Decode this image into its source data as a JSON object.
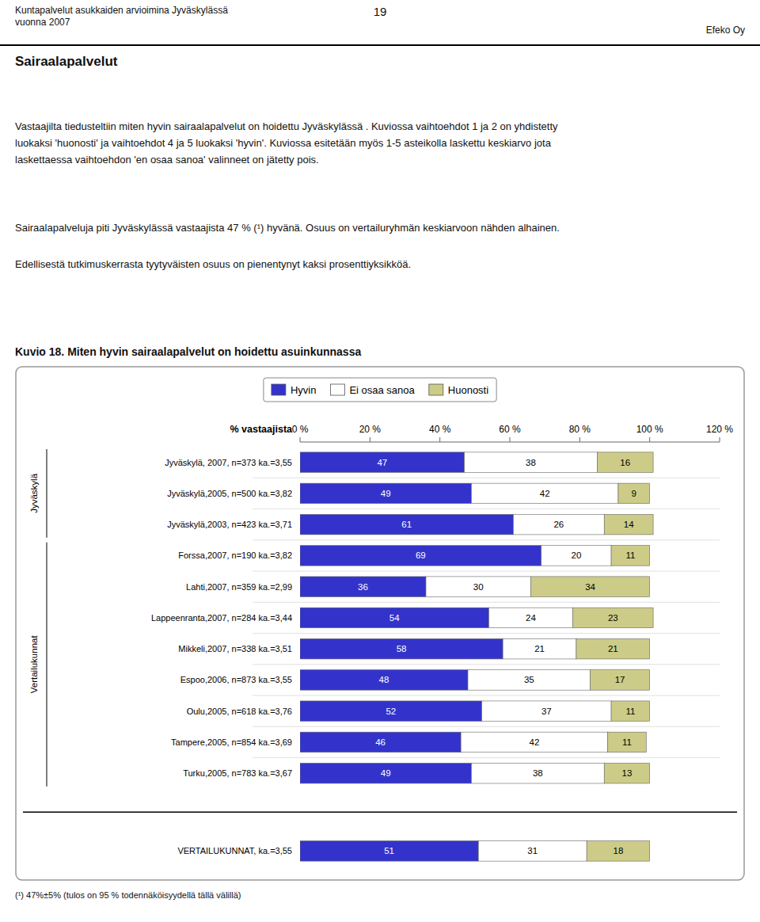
{
  "page": {
    "header_left": "Kuntapalvelut asukkaiden arvioimina Jyväskylässä\nvuonna 2007",
    "header_center": "19",
    "header_right": "Efeko Oy",
    "section_title": "Sairaalapalvelut",
    "body_text1": "Vastaajilta tiedusteltiin miten hyvin sairaalapalvelut on hoidettu Jyväskylässä . Kuviossa vaihtoehdot 1 ja 2 on yhdistetty\nluokaksi 'huonosti' ja vaihtoehdot 4 ja 5 luokaksi 'hyvin'. Kuviossa esitetään myös 1-5 asteikolla laskettu keskiarvo jota\nlaskettaessa vaihtoehdon 'en osaa sanoa' valinneet on jätetty pois.",
    "body_text2": "Sairaalapalveluja piti Jyväskylässä vastaajista 47 % (¹) hyvänä. Osuus on vertailuryhmän keskiarvoon nähden alhainen.",
    "body_text3": "Edellisestä tutkimuskerrasta tyytyväisten osuus on pienentynyt  kaksi prosenttiyksikköä.",
    "footnote": "(¹) 47%±5% (tulos on 95 % todennäköisyydellä tällä välillä)"
  },
  "chart_data": {
    "type": "bar",
    "orientation": "horizontal",
    "stacked": true,
    "data_labels": true,
    "grid": false,
    "legend": "top",
    "title": "Kuvio 18. Miten hyvin sairaalapalvelut on hoidettu asuinkunnassa",
    "x_label": "% vastaajista",
    "annotations": [
      "Jyväskylä",
      "Vertailukunnat"
    ],
    "categories": [
      "Jyväskylä, 2007, n=373 ka.=3,55",
      "Jyväskylä,2005, n=500 ka.=3,82",
      "Jyväskylä,2003, n=423 ka.=3,71",
      "Forssa,2007, n=190 ka.=3,82",
      "Lahti,2007, n=359 ka.=2,99",
      "Lappeenranta,2007, n=284 ka.=3,44",
      "Mikkeli,2007, n=338 ka.=3,51",
      "Espoo,2006, n=873 ka.=3,55",
      "Oulu,2005, n=618 ka.=3,76",
      "Tampere,2005, n=854 ka.=3,69",
      "Turku,2005, n=783 ka.=3,67",
      "VERTAILUKUNNAT, ka.=3,55"
    ],
    "series": [
      {
        "name": "Hyvin",
        "color": "#3333CC",
        "values": [
          47,
          49,
          61,
          69,
          36,
          54,
          58,
          48,
          52,
          46,
          49,
          51
        ]
      },
      {
        "name": "Ei osaa sanoa",
        "color": "#FFFFFF",
        "values": [
          38,
          42,
          26,
          20,
          30,
          24,
          21,
          35,
          37,
          42,
          38,
          31
        ]
      },
      {
        "name": "Huonosti",
        "color": "#CCCC88",
        "values": [
          16,
          9,
          14,
          11,
          34,
          23,
          21,
          17,
          11,
          11,
          13,
          18
        ]
      }
    ],
    "xlim": [
      0,
      120
    ],
    "xticks": [
      {
        "value": 0,
        "label": "0 %"
      },
      {
        "value": 20,
        "label": "20 %"
      },
      {
        "value": 40,
        "label": "40 %"
      },
      {
        "value": 60,
        "label": "60 %"
      },
      {
        "value": 80,
        "label": "80 %"
      },
      {
        "value": 100,
        "label": "100 %"
      },
      {
        "value": 120,
        "label": "120 %"
      }
    ]
  }
}
